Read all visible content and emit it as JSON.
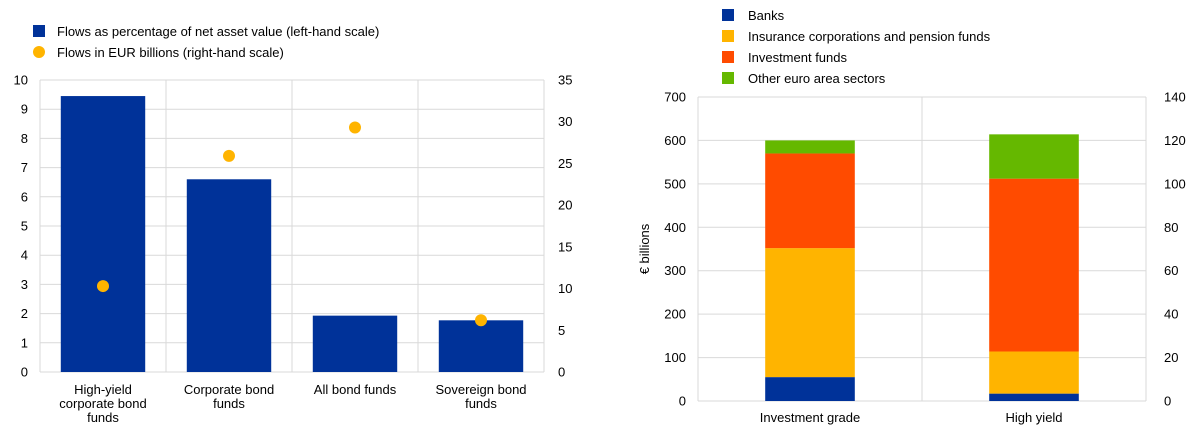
{
  "chart_data": [
    {
      "type": "bar",
      "categories": [
        [
          "High-yield",
          "corporate bond",
          "funds"
        ],
        [
          "Corporate bond",
          "funds"
        ],
        [
          "All bond funds"
        ],
        [
          "Sovereign bond",
          "funds"
        ]
      ],
      "series": [
        {
          "name": "Flows as percentage of net asset value (left-hand scale)",
          "kind": "bar",
          "axis": "left",
          "color": "#003299",
          "values": [
            9.45,
            6.6,
            1.93,
            1.77
          ]
        },
        {
          "name": "Flows in EUR billions (right-hand scale)",
          "kind": "scatter",
          "axis": "right",
          "color": "#FFB400",
          "values": [
            10.3,
            25.9,
            29.3,
            6.2
          ]
        }
      ],
      "y_left": {
        "min": 0,
        "max": 10,
        "ticks": [
          "0",
          "1",
          "2",
          "3",
          "4",
          "5",
          "6",
          "7",
          "8",
          "9",
          "10"
        ]
      },
      "y_right": {
        "min": 0,
        "max": 35,
        "ticks": [
          "0",
          "5",
          "10",
          "15",
          "20",
          "25",
          "30",
          "35"
        ]
      },
      "grid": true,
      "legend_position": "top-left"
    },
    {
      "type": "bar",
      "stacked": true,
      "categories": [
        "Investment grade",
        "High yield"
      ],
      "series": [
        {
          "name": "Banks",
          "color": "#003299",
          "values": [
            55,
            17
          ]
        },
        {
          "name": "Insurance corporations and pension funds",
          "color": "#FFB400",
          "values": [
            297,
            97
          ]
        },
        {
          "name": "Investment funds",
          "color": "#FF4B00",
          "values": [
            218,
            398
          ]
        },
        {
          "name": "Other euro area sectors",
          "color": "#65B800",
          "values": [
            30,
            102
          ]
        }
      ],
      "ylabel": "€ billions",
      "y_left": {
        "min": 0,
        "max": 700,
        "ticks": [
          "0",
          "100",
          "200",
          "300",
          "400",
          "500",
          "600",
          "700"
        ]
      },
      "y_right": {
        "min": 0,
        "max": 140,
        "ticks": [
          "0",
          "20",
          "40",
          "60",
          "80",
          "100",
          "120",
          "140"
        ]
      },
      "grid": true,
      "legend_position": "top-left"
    }
  ]
}
